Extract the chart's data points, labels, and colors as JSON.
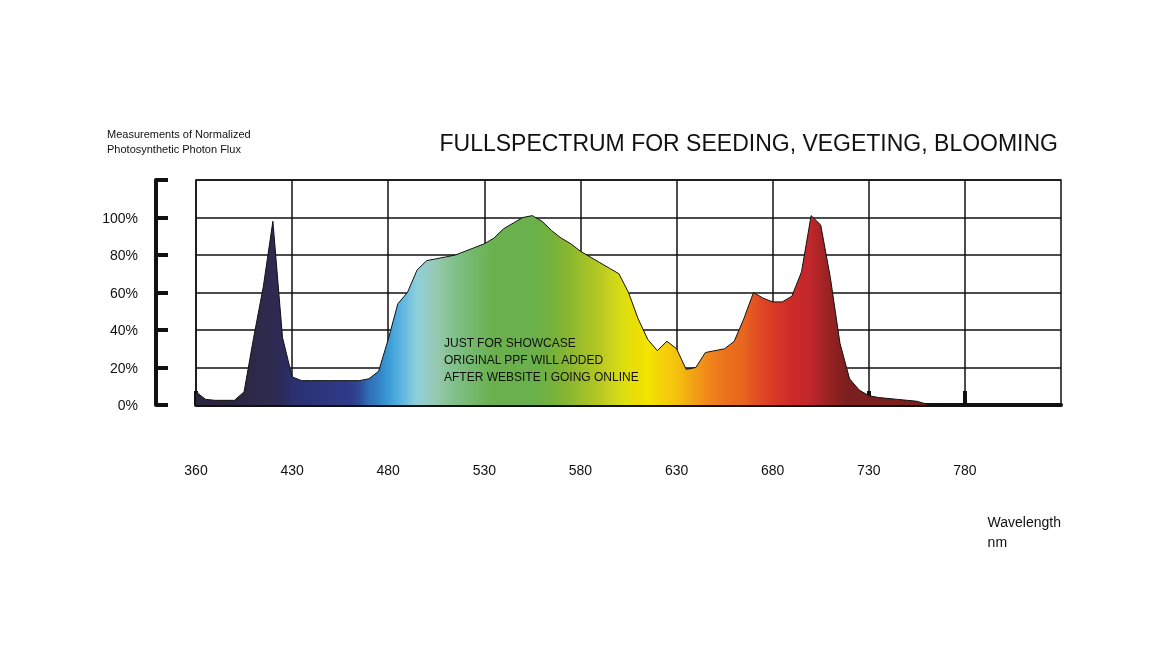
{
  "chart_data": {
    "type": "area",
    "title": "FULLSPECTRUM FOR SEEDING, VEGETING, BLOOMING",
    "ylabel": "Measurements of Normalized\nPhotosynthetic Photon Flux",
    "xlabel": "Wavelength\nnm",
    "annotations": [
      "JUST FOR SHOWCASE\nORIGINAL PPF WILL ADDED\nAFTER WEBSITE I GOING ONLINE"
    ],
    "categories": [
      "360",
      null,
      null,
      null,
      null,
      null,
      null,
      null,
      null,
      null,
      "430",
      null,
      null,
      null,
      null,
      null,
      null,
      null,
      null,
      null,
      "480",
      null,
      null,
      null,
      null,
      null,
      null,
      null,
      null,
      null,
      "530",
      null,
      null,
      null,
      null,
      null,
      null,
      null,
      null,
      null,
      "580",
      null,
      null,
      null,
      null,
      null,
      null,
      null,
      null,
      null,
      "630",
      null,
      null,
      null,
      null,
      null,
      null,
      null,
      null,
      null,
      "680",
      null,
      null,
      null,
      null,
      null,
      null,
      null,
      null,
      null,
      "730",
      null,
      null,
      null,
      null,
      null,
      null,
      null,
      null,
      null,
      "780",
      null,
      null,
      null,
      null,
      null,
      null,
      null,
      null,
      null,
      null
    ],
    "series": [
      {
        "values": [
          7,
          3,
          2.5,
          2.5,
          2.5,
          7,
          36,
          63,
          98,
          36,
          15,
          13,
          13,
          13,
          13,
          13,
          13,
          13,
          14,
          18,
          35,
          54,
          60,
          72,
          77,
          78,
          79,
          80,
          82,
          84,
          86,
          89,
          94,
          97,
          100,
          101,
          98,
          93,
          89,
          86,
          82,
          79,
          76,
          73,
          70,
          60,
          46,
          35,
          29,
          34,
          30,
          19,
          20,
          28,
          29,
          30,
          34,
          46,
          60,
          57,
          55,
          55,
          58,
          71,
          101,
          96,
          68,
          33,
          14,
          8,
          5,
          4,
          3.5,
          3,
          2.5,
          2,
          0.5,
          0,
          null,
          null,
          null,
          null,
          null,
          null,
          null,
          null,
          null,
          null,
          null,
          null,
          null
        ],
        "colors": [
          "#2b2540",
          "#2b2540",
          "#2b2540",
          "#2b2540",
          "#2b2540",
          "#2c2745",
          "#2d2848",
          "#2e2a4c",
          "#2e2a50",
          "#2c2a58",
          "#2a2f6e",
          "#2b3274",
          "#2b3478",
          "#2c367c",
          "#2d3880",
          "#2e3a86",
          "#2e3a8a",
          "#2f4a96",
          "#2f6fb5",
          "#3282c4",
          "#3a9bd5",
          "#52aede",
          "#6fc0e0",
          "#8fcfd8",
          "#94ccc6",
          "#96c8b0",
          "#8cc49a",
          "#7fc08a",
          "#78bc78",
          "#72b868",
          "#6eb45c",
          "#6ab04c",
          "#6ab04c",
          "#6ab04c",
          "#6ab04c",
          "#6ab04c",
          "#6eb044",
          "#74b23c",
          "#80b434",
          "#8cb830",
          "#9bbd2a",
          "#a8c226",
          "#b6c822",
          "#c8d21e",
          "#d6da16",
          "#e2e00c",
          "#ecdc04",
          "#f2e600",
          "#f4d808",
          "#f4cc0b",
          "#f4c20d",
          "#f2b012",
          "#f19e16",
          "#f08c1a",
          "#ee7e1c",
          "#ec721d",
          "#ea6b1e",
          "#e8651f",
          "#e25422",
          "#de4624",
          "#d93a25",
          "#d53228",
          "#cc2a29",
          "#c6282a",
          "#c0262b",
          "#a82426",
          "#962222",
          "#862020",
          "#7a1e1e",
          "#7a1e1e",
          "#7a1e1e",
          "#7a1e1e",
          "#7a1e1e",
          "#7a1e1e",
          "#7a1e1e",
          "#7a1e1e",
          "#7a1e1e",
          "#7a1e1e",
          null,
          null,
          null,
          null,
          null,
          null,
          null,
          null,
          null,
          null,
          null,
          null,
          null
        ]
      }
    ],
    "ylim": [
      0,
      120
    ],
    "yticks": [
      {
        "value": 0,
        "label": "0%"
      },
      {
        "value": 20,
        "label": "20%"
      },
      {
        "value": 40,
        "label": "40%"
      },
      {
        "value": 60,
        "label": "60%"
      },
      {
        "value": 80,
        "label": "80%"
      },
      {
        "value": 100,
        "label": "100%"
      },
      {
        "value": 120,
        "label": null
      }
    ],
    "grid": true,
    "marker": "none",
    "line_style": "solid"
  }
}
